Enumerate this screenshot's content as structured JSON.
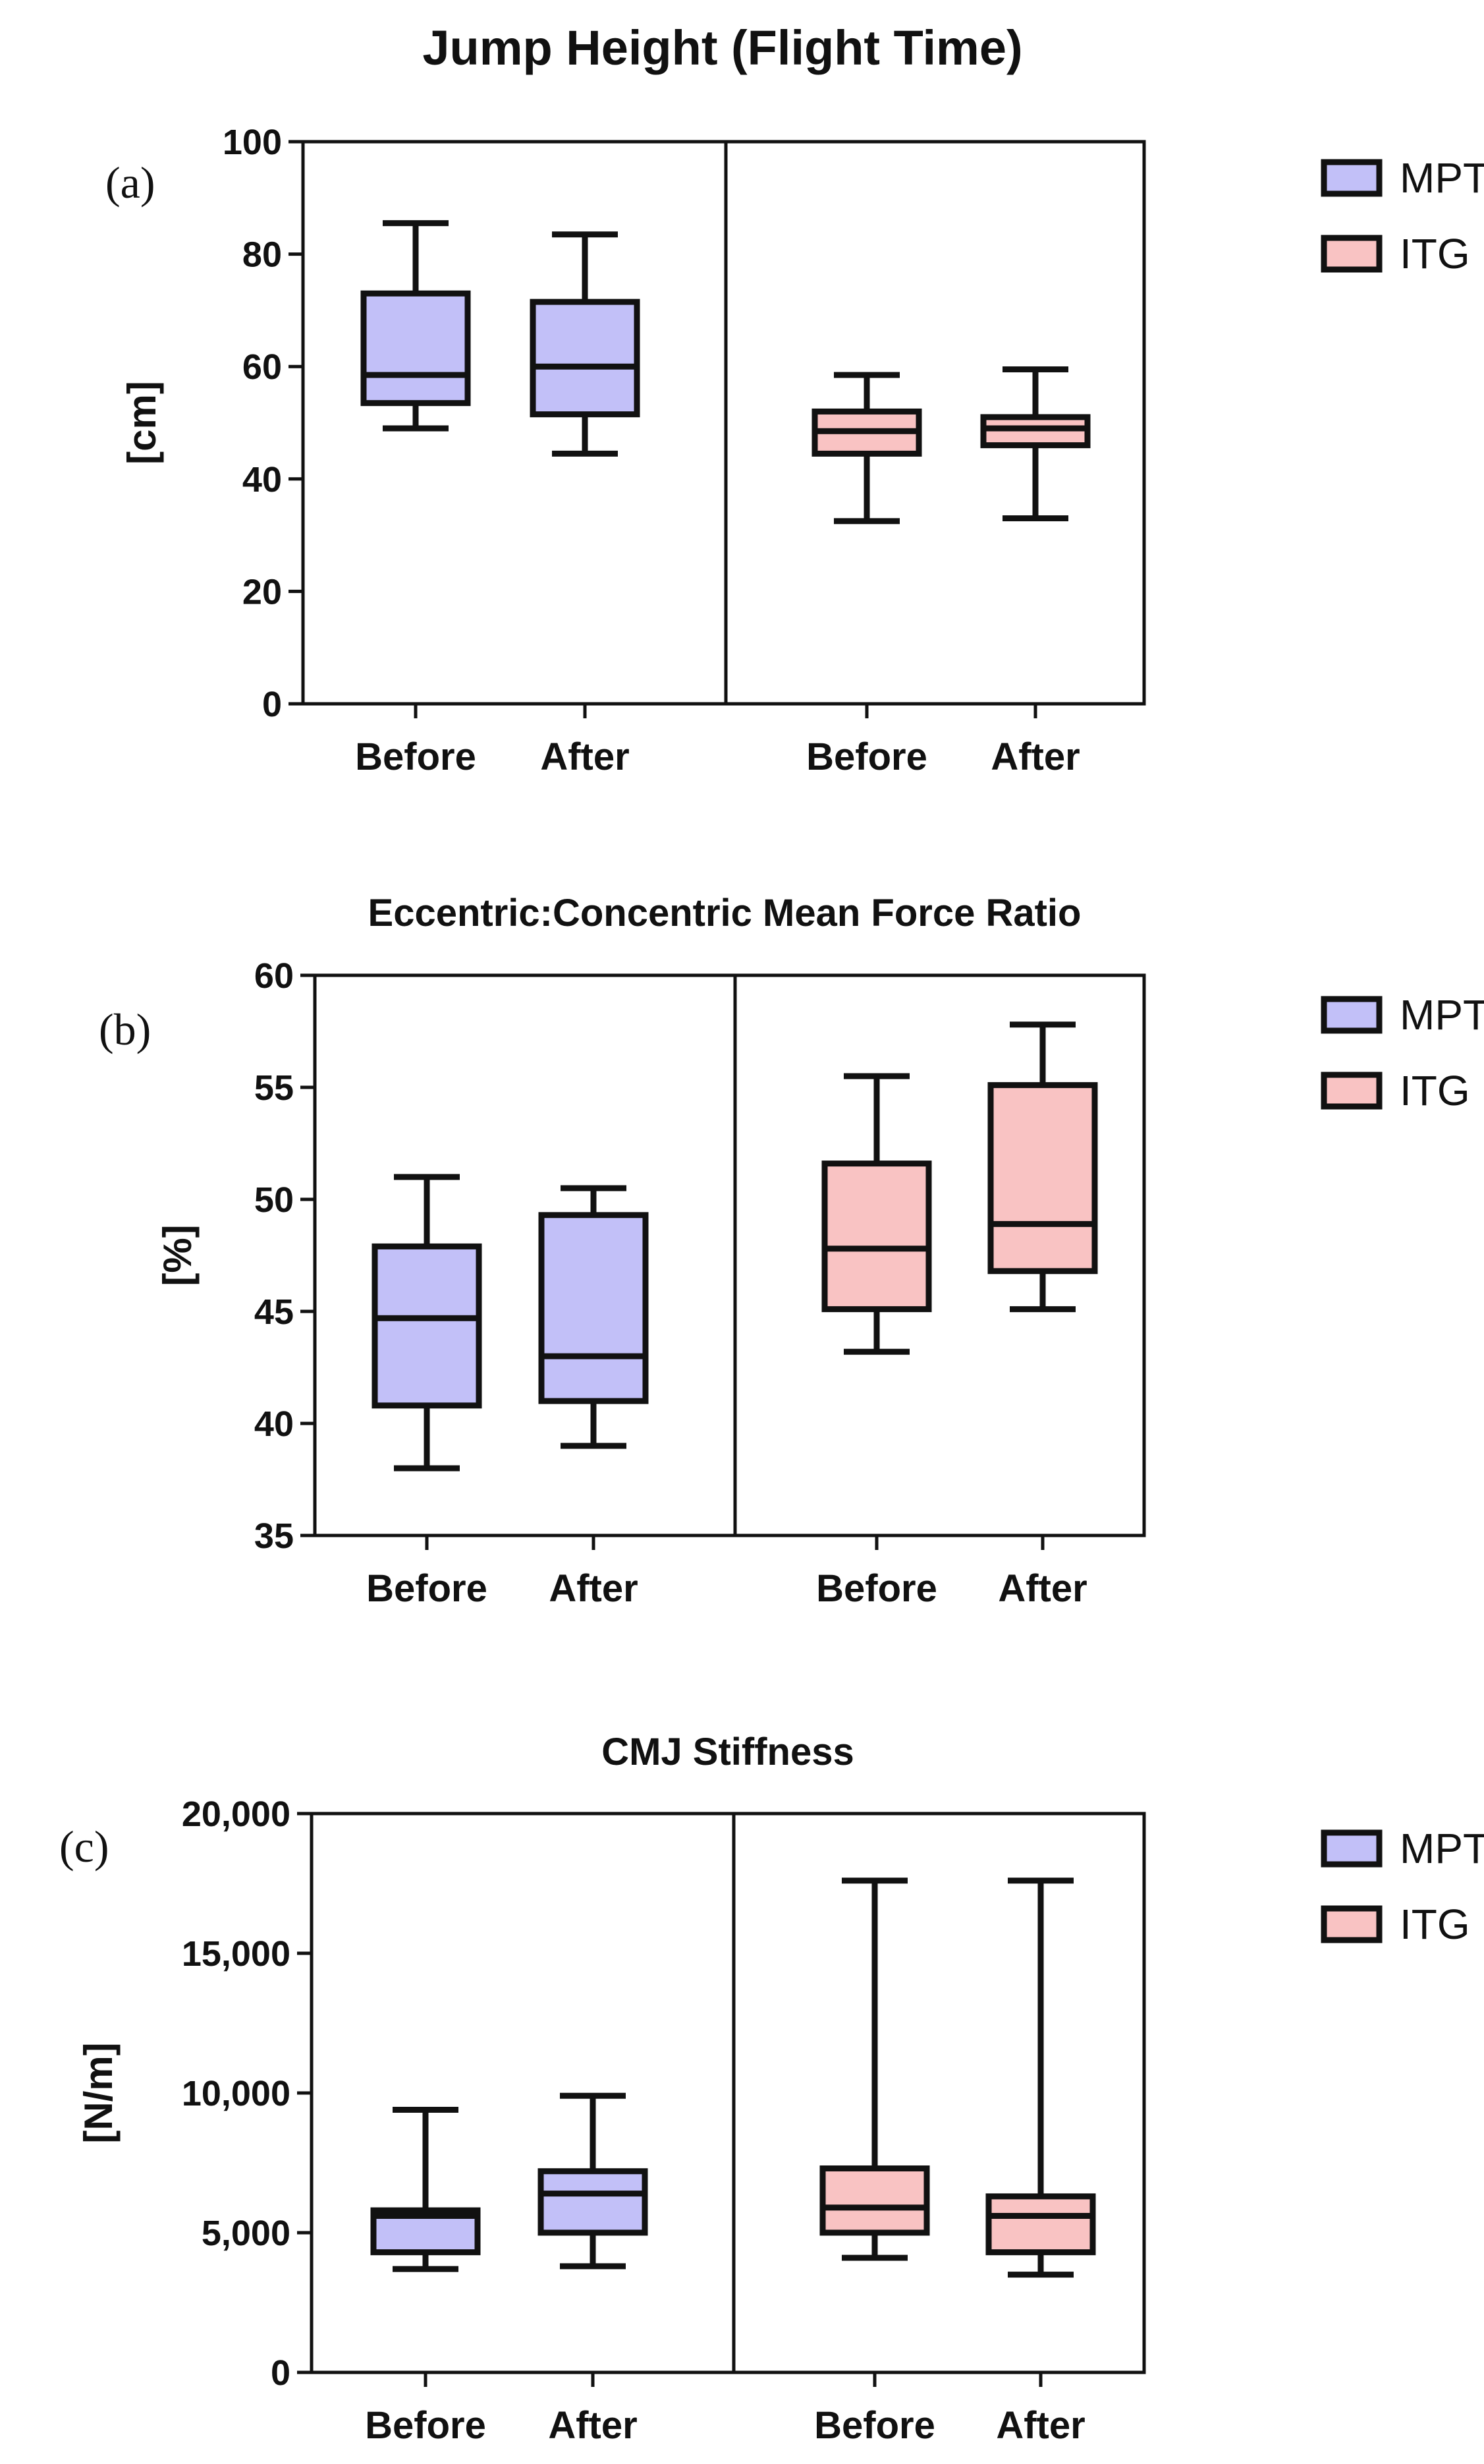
{
  "colors": {
    "MPT": "#c2c0f8",
    "ITG": "#f9c3c3",
    "stroke": "#111111"
  },
  "chart_data": [
    {
      "type": "box",
      "panel": "(a)",
      "title": "Jump Height (Flight Time)",
      "ylabel": "[cm]",
      "ylim": [
        0,
        100
      ],
      "yticks": [
        0,
        20,
        40,
        60,
        80,
        100
      ],
      "ytick_labels": [
        "0",
        "20",
        "40",
        "60",
        "80",
        "100"
      ],
      "categories": [
        "Before",
        "After",
        "Before",
        "After"
      ],
      "legend": [
        "MPT",
        "ITG"
      ],
      "series": [
        {
          "name": "MPT",
          "boxes": [
            {
              "label": "Before",
              "min": 49,
              "q1": 53.5,
              "median": 58.5,
              "q3": 73,
              "max": 85.5
            },
            {
              "label": "After",
              "min": 44.5,
              "q1": 51.5,
              "median": 60,
              "q3": 71.5,
              "max": 83.5
            }
          ]
        },
        {
          "name": "ITG",
          "boxes": [
            {
              "label": "Before",
              "min": 32.5,
              "q1": 44.5,
              "median": 48.5,
              "q3": 52,
              "max": 58.5
            },
            {
              "label": "After",
              "min": 33,
              "q1": 46,
              "median": 49,
              "q3": 51,
              "max": 59.5
            }
          ]
        }
      ]
    },
    {
      "type": "box",
      "panel": "(b)",
      "title": "Eccentric:Concentric Mean Force Ratio",
      "ylabel": "[%]",
      "ylim": [
        35,
        60
      ],
      "yticks": [
        35,
        40,
        45,
        50,
        55,
        60
      ],
      "ytick_labels": [
        "35",
        "40",
        "45",
        "50",
        "55",
        "60"
      ],
      "categories": [
        "Before",
        "After",
        "Before",
        "After"
      ],
      "legend": [
        "MPT",
        "ITG"
      ],
      "series": [
        {
          "name": "MPT",
          "boxes": [
            {
              "label": "Before",
              "min": 38,
              "q1": 40.8,
              "median": 44.7,
              "q3": 47.9,
              "max": 51
            },
            {
              "label": "After",
              "min": 39,
              "q1": 41,
              "median": 43,
              "q3": 49.3,
              "max": 50.5
            }
          ]
        },
        {
          "name": "ITG",
          "boxes": [
            {
              "label": "Before",
              "min": 43.2,
              "q1": 45.1,
              "median": 47.8,
              "q3": 51.6,
              "max": 55.5
            },
            {
              "label": "After",
              "min": 45.1,
              "q1": 46.8,
              "median": 48.9,
              "q3": 55.1,
              "max": 57.8
            }
          ]
        }
      ]
    },
    {
      "type": "box",
      "panel": "(c)",
      "title": "CMJ Stiffness",
      "ylabel": "[N/m]",
      "ylim": [
        0,
        20000
      ],
      "yticks": [
        0,
        5000,
        10000,
        15000,
        20000
      ],
      "ytick_labels": [
        "0",
        "5,000",
        "10,000",
        "15,000",
        "20,000"
      ],
      "categories": [
        "Before",
        "After",
        "Before",
        "After"
      ],
      "legend": [
        "MPT",
        "ITG"
      ],
      "series": [
        {
          "name": "MPT",
          "boxes": [
            {
              "label": "Before",
              "min": 3700,
              "q1": 4300,
              "median": 5600,
              "q3": 5800,
              "max": 9400
            },
            {
              "label": "After",
              "min": 3800,
              "q1": 5000,
              "median": 6400,
              "q3": 7200,
              "max": 9900
            }
          ]
        },
        {
          "name": "ITG",
          "boxes": [
            {
              "label": "Before",
              "min": 4100,
              "q1": 5000,
              "median": 5900,
              "q3": 7300,
              "max": 17600
            },
            {
              "label": "After",
              "min": 3500,
              "q1": 4300,
              "median": 5600,
              "q3": 6300,
              "max": 17600
            }
          ]
        }
      ]
    }
  ]
}
